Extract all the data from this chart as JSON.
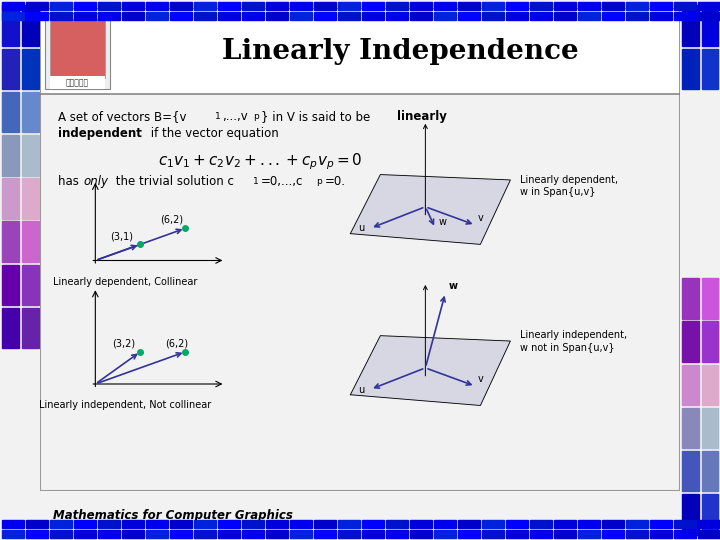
{
  "title": "Linearly Independence",
  "slide_bg": "#f2f2f2",
  "main_bg": "#ffffff",
  "footer": "Mathematics for Computer Graphics",
  "label_dep_collinear": "Linearly dependent, Collinear",
  "label_ind_notcollinear": "Linearly independent, Not collinear",
  "label_dep_span_line1": "Linearly dependent,",
  "label_dep_span_line2": "w in Span{u,v}",
  "label_ind_span_line1": "Linearly independent,",
  "label_ind_span_line2": "w not in Span{u,v}",
  "left_border_colors": [
    [
      "#1111cc",
      "#0000bb"
    ],
    [
      "#2222bb",
      "#0033bb"
    ],
    [
      "#4466bb",
      "#6688cc"
    ],
    [
      "#8899bb",
      "#aabbcc"
    ],
    [
      "#cc99cc",
      "#ddaacc"
    ],
    [
      "#9944bb",
      "#cc66cc"
    ],
    [
      "#6600aa",
      "#8833bb"
    ],
    [
      "#4400aa",
      "#6622aa"
    ]
  ],
  "right_border_colors_top": [
    [
      "#0000bb",
      "#0000cc"
    ],
    [
      "#0033bb",
      "#2244cc"
    ]
  ],
  "right_border_colors_bot": [
    [
      "#9944bb",
      "#bb66dd"
    ],
    [
      "#7722aa",
      "#9944cc"
    ],
    [
      "#cc99cc",
      "#ddaacc"
    ],
    [
      "#8899bb",
      "#aabbcc"
    ],
    [
      "#4466bb",
      "#6688bb"
    ],
    [
      "#0000bb",
      "#2244cc"
    ]
  ],
  "bottom_blue1": "#0000dd",
  "bottom_blue2": "#0000bb",
  "vec_color": "#333399",
  "dot_color": "#00aa66",
  "plane_color": "#ccccdd"
}
